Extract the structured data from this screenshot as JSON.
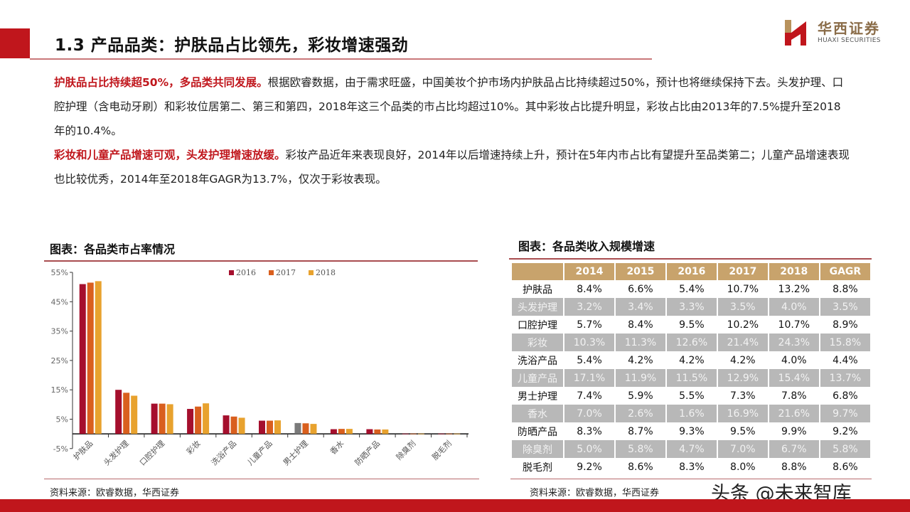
{
  "header": {
    "title": "1.3 产品品类：护肤品占比领先，彩妆增速强劲",
    "logo_cn": "华西证券",
    "logo_en": "HUAXI SECURITIES"
  },
  "paragraphs": [
    {
      "highlight": "护肤品占比持续超50%，多品类共同发展。",
      "text": "根据欧睿数据，由于需求旺盛，中国美妆个护市场内护肤品占比持续超过50%，预计也将继续保持下去。头发护理、口腔护理（含电动牙刷）和彩妆位居第二、第三和第四，2018年这三个品类的市占比均超过10%。其中彩妆占比提升明显，彩妆占比由2013年的7.5%提升至2018年的10.4%。"
    },
    {
      "highlight": "彩妆和儿童产品增速可观，头发护理增速放缓。",
      "text": "彩妆产品近年来表现良好，2014年以后增速持续上升，预计在5年内市占比有望提升至品类第二；儿童产品增速表现也比较优秀，2014年至2018年GAGR为13.7%，仅次于彩妆表现。"
    }
  ],
  "left_panel": {
    "title": "图表：各品类市占率情况",
    "source": "资料来源：欧睿数据，华西证券"
  },
  "right_panel": {
    "title": "图表：各品类收入规模增速",
    "source": "资料来源：欧睿数据，华西证券",
    "columns": [
      "",
      "2014",
      "2015",
      "2016",
      "2017",
      "2018",
      "GAGR"
    ],
    "rows": [
      [
        "护肤品",
        "8.4%",
        "6.6%",
        "5.4%",
        "10.7%",
        "13.2%",
        "8.8%"
      ],
      [
        "头发护理",
        "3.2%",
        "3.4%",
        "3.3%",
        "3.5%",
        "4.0%",
        "3.5%"
      ],
      [
        "口腔护理",
        "5.7%",
        "8.4%",
        "9.5%",
        "10.2%",
        "10.7%",
        "8.9%"
      ],
      [
        "彩妆",
        "10.3%",
        "11.3%",
        "12.6%",
        "21.4%",
        "24.3%",
        "15.8%"
      ],
      [
        "洗浴产品",
        "5.4%",
        "4.2%",
        "4.2%",
        "4.2%",
        "4.0%",
        "4.4%"
      ],
      [
        "儿童产品",
        "17.1%",
        "11.9%",
        "11.5%",
        "12.9%",
        "15.4%",
        "13.7%"
      ],
      [
        "男士护理",
        "7.4%",
        "5.9%",
        "5.5%",
        "7.3%",
        "7.8%",
        "6.8%"
      ],
      [
        "香水",
        "7.0%",
        "2.6%",
        "1.6%",
        "16.9%",
        "21.6%",
        "9.7%"
      ],
      [
        "防晒产品",
        "8.3%",
        "8.7%",
        "9.3%",
        "9.5%",
        "9.9%",
        "9.2%"
      ],
      [
        "除臭剂",
        "5.0%",
        "5.8%",
        "4.7%",
        "7.0%",
        "6.7%",
        "5.8%"
      ],
      [
        "脱毛剂",
        "9.2%",
        "8.6%",
        "8.3%",
        "8.0%",
        "8.8%",
        "8.6%"
      ]
    ]
  },
  "watermark": "头条 @未来智库",
  "colors": {
    "brand_red": "#c0161c",
    "series_2016": "#a50f2d",
    "series_2017": "#d95f1e",
    "series_2018": "#e8a22e",
    "table_header": "#c8a36c",
    "table_shade": "#b8b8b8"
  },
  "chart_data": [
    {
      "type": "bar",
      "title": "图表：各品类市占率情况",
      "xlabel": "",
      "ylabel": "",
      "ylim": [
        -5,
        55
      ],
      "yticks": [
        "-5%",
        "5%",
        "15%",
        "25%",
        "35%",
        "45%",
        "55%"
      ],
      "grid": false,
      "legend_position": "top",
      "categories": [
        "护肤品",
        "头发护理",
        "口腔护理",
        "彩妆",
        "洗浴产品",
        "儿童产品",
        "男士护理",
        "香水",
        "防晒产品",
        "除臭剂",
        "脱毛剂"
      ],
      "series": [
        {
          "name": "2016",
          "values": [
            51.0,
            15.0,
            10.3,
            8.5,
            6.3,
            4.5,
            3.7,
            1.6,
            1.6,
            0.1,
            0.1
          ]
        },
        {
          "name": "2017",
          "values": [
            51.5,
            14.0,
            10.3,
            9.3,
            5.9,
            4.5,
            3.6,
            1.7,
            1.5,
            0.1,
            0.1
          ]
        },
        {
          "name": "2018",
          "values": [
            52.0,
            13.0,
            10.1,
            10.4,
            5.5,
            4.6,
            3.4,
            1.7,
            1.5,
            0.1,
            0.1
          ]
        }
      ]
    },
    {
      "type": "table",
      "title": "图表：各品类收入规模增速",
      "columns": [
        "",
        "2014",
        "2015",
        "2016",
        "2017",
        "2018",
        "GAGR"
      ],
      "rows": [
        [
          "护肤品",
          8.4,
          6.6,
          5.4,
          10.7,
          13.2,
          8.8
        ],
        [
          "头发护理",
          3.2,
          3.4,
          3.3,
          3.5,
          4.0,
          3.5
        ],
        [
          "口腔护理",
          5.7,
          8.4,
          9.5,
          10.2,
          10.7,
          8.9
        ],
        [
          "彩妆",
          10.3,
          11.3,
          12.6,
          21.4,
          24.3,
          15.8
        ],
        [
          "洗浴产品",
          5.4,
          4.2,
          4.2,
          4.2,
          4.0,
          4.4
        ],
        [
          "儿童产品",
          17.1,
          11.9,
          11.5,
          12.9,
          15.4,
          13.7
        ],
        [
          "男士护理",
          7.4,
          5.9,
          5.5,
          7.3,
          7.8,
          6.8
        ],
        [
          "香水",
          7.0,
          2.6,
          1.6,
          16.9,
          21.6,
          9.7
        ],
        [
          "防晒产品",
          8.3,
          8.7,
          9.3,
          9.5,
          9.9,
          9.2
        ],
        [
          "除臭剂",
          5.0,
          5.8,
          4.7,
          7.0,
          6.7,
          5.8
        ],
        [
          "脱毛剂",
          9.2,
          8.6,
          8.3,
          8.0,
          8.8,
          8.6
        ]
      ]
    }
  ]
}
